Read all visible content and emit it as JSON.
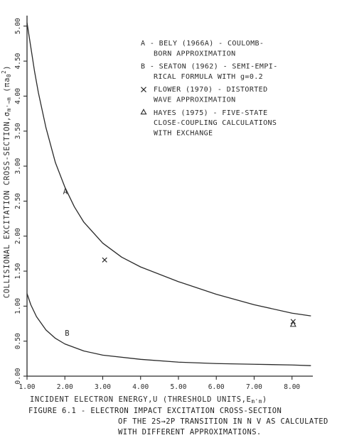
{
  "chart_data": {
    "type": "line",
    "xlabel": "INCIDENT ELECTRON ENERGY,U (THRESHOLD UNITS,E",
    "xlabel_sub": "m'm",
    "xlabel_close": ")",
    "ylabel": "COLLISIONAL EXCITATION CROSS-SECTION,σ",
    "ylabel_sub": "m'→m",
    "ylabel_unit": "(πa",
    "ylabel_unit_sub": "0",
    "ylabel_unit_sup": "2",
    "ylabel_close": ")",
    "xlim": [
      1.0,
      8.55
    ],
    "ylim": [
      0.0,
      5.15
    ],
    "x_ticks": [
      1,
      2,
      3,
      4,
      5,
      6,
      7,
      8
    ],
    "x_tick_labels": [
      "1.00",
      "2.00",
      "3.00",
      "4.00",
      "5.00",
      "6.00",
      "7.00",
      "8.00"
    ],
    "y_ticks": [
      0,
      0.5,
      1,
      1.5,
      2,
      2.5,
      3,
      3.5,
      4,
      4.5,
      5
    ],
    "y_tick_labels": [
      "0.00",
      "0.50",
      "1.00",
      "1.50",
      "2.00",
      "2.50",
      "3.00",
      "3.50",
      "4.00",
      "4.50",
      "5.00"
    ],
    "series": [
      {
        "name": "A",
        "kind": "line",
        "x": [
          1.0,
          1.1,
          1.2,
          1.3,
          1.5,
          1.75,
          2.0,
          2.25,
          2.5,
          3.0,
          3.5,
          4.0,
          5.0,
          6.0,
          7.0,
          8.0,
          8.5
        ],
        "y": [
          5.05,
          4.7,
          4.35,
          4.05,
          3.55,
          3.05,
          2.7,
          2.42,
          2.2,
          1.9,
          1.7,
          1.56,
          1.35,
          1.17,
          1.02,
          0.9,
          0.86
        ]
      },
      {
        "name": "B",
        "kind": "line",
        "x": [
          1.0,
          1.1,
          1.25,
          1.5,
          1.75,
          2.0,
          2.5,
          3.0,
          4.0,
          5.0,
          6.0,
          7.0,
          8.0,
          8.5
        ],
        "y": [
          1.18,
          1.02,
          0.85,
          0.66,
          0.54,
          0.46,
          0.36,
          0.3,
          0.24,
          0.2,
          0.18,
          0.17,
          0.16,
          0.15
        ]
      },
      {
        "name": "FLOWER",
        "kind": "marker-x",
        "x": [
          3.05,
          8.03
        ],
        "y": [
          1.66,
          0.78
        ]
      },
      {
        "name": "HAYES",
        "kind": "marker-triangle",
        "x": [
          8.03
        ],
        "y": [
          0.74
        ]
      }
    ],
    "series_labels": [
      {
        "text": "A",
        "x": 1.95,
        "y": 2.6
      },
      {
        "text": "B",
        "x": 2.0,
        "y": 0.58
      }
    ],
    "legend": [
      {
        "symbol": "A",
        "lines": [
          "A - BELY (1966A) - COULOMB-",
          "BORN APPROXIMATION"
        ]
      },
      {
        "symbol": "B",
        "lines": [
          "B - SEATON (1962) - SEMI-EMPI-",
          "RICAL FORMULA WITH g=0.2"
        ]
      },
      {
        "symbol": "x",
        "lines": [
          "FLOWER (1970) - DISTORTED",
          "WAVE APPROXIMATION"
        ]
      },
      {
        "symbol": "triangle",
        "lines": [
          "HAYES (1975) - FIVE-STATE",
          "CLOSE-COUPLING CALCULATIONS",
          "WITH EXCHANGE"
        ]
      }
    ],
    "legend_placement": "top-right",
    "grid": false
  },
  "caption": {
    "line1": "FIGURE 6.1 - ELECTRON IMPACT EXCITATION CROSS-SECTION",
    "line2": "OF THE 2S→2P TRANSITION IN N V AS CALCULATED",
    "line3": "WITH DIFFERENT APPROXIMATIONS."
  }
}
